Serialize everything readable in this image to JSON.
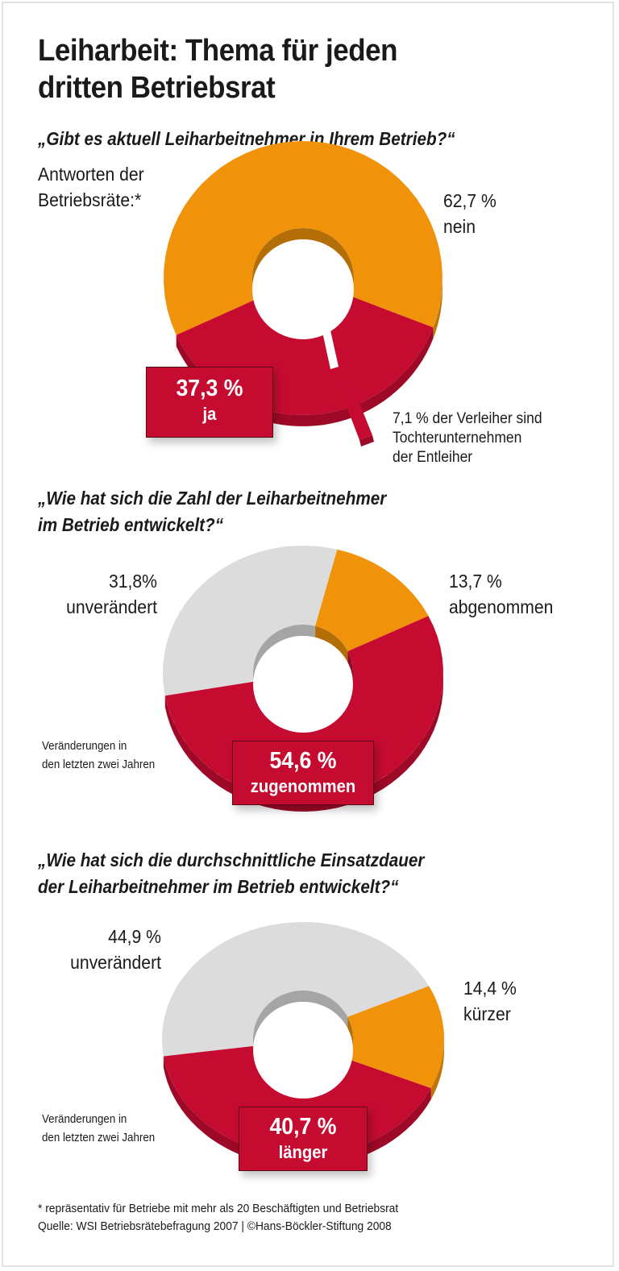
{
  "title": "Leiharbeit: Thema für jeden dritten Betriebsrat",
  "title_line1": "Leiharbeit: Thema für jeden",
  "title_line2": "dritten Betriebsrat",
  "colors": {
    "red": "#c60b31",
    "orange": "#f0920a",
    "gray": "#dcdcdd"
  },
  "chart_data": [
    {
      "type": "pie",
      "title": "„Gibt es aktuell Leiharbeitnehmer in Ihrem Betrieb?“",
      "subtitle": "Antworten der Betriebsräte:*",
      "categories": [
        "nein",
        "ja"
      ],
      "values": [
        62.7,
        37.3
      ],
      "colors": [
        "#f0920a",
        "#c60b31"
      ],
      "annotation": "7,1% der Verleiher sind Tochterunternehmen der Entleiher",
      "annotation_value": 7.1
    },
    {
      "type": "pie",
      "title": "„Wie hat sich die Zahl der Leiharbeitnehmer im Betrieb entwickelt?“",
      "note": "Veränderungen in den letzten zwei Jahren",
      "categories": [
        "unverändert",
        "abgenommen",
        "zugenommen"
      ],
      "values": [
        31.8,
        13.7,
        54.6
      ],
      "colors": [
        "#dcdcdd",
        "#f0920a",
        "#c60b31"
      ]
    },
    {
      "type": "pie",
      "title": "„Wie hat sich die durchschnittliche Einsatzdauer der Leiharbeitnehmer im Betrieb entwickelt?“",
      "note": "Veränderungen in den letzten zwei Jahren",
      "categories": [
        "unverändert",
        "kürzer",
        "länger"
      ],
      "values": [
        44.9,
        14.4,
        40.7
      ],
      "colors": [
        "#dcdcdd",
        "#f0920a",
        "#c60b31"
      ]
    }
  ],
  "c1": {
    "q": "„Gibt es aktuell Leiharbeitnehmer in Ihrem Betrieb?“",
    "sub1": "Antworten der",
    "sub2": "Betriebsräte:*",
    "nein_val": "62,7 %",
    "nein_lbl": "nein",
    "ja_val": "37,3 %",
    "ja_lbl": "ja",
    "ann1": "7,1 % der Verleiher sind",
    "ann2": "Tochterunternehmen",
    "ann3": "der Entleiher"
  },
  "c2": {
    "q1": "„Wie hat sich die Zahl der Leiharbeitnehmer",
    "q2": "im Betrieb entwickelt?“",
    "a_val": "31,8%",
    "a_lbl": "unverändert",
    "b_val": "13,7 %",
    "b_lbl": "abgenommen",
    "c_val": "54,6 %",
    "c_lbl": "zugenommen",
    "note1": "Veränderungen in",
    "note2": "den letzten zwei Jahren"
  },
  "c3": {
    "q1": "„Wie hat sich die durchschnittliche Einsatzdauer",
    "q2": "der Leiharbeitnehmer im Betrieb entwickelt?“",
    "a_val": "44,9 %",
    "a_lbl": "unverändert",
    "b_val": "14,4 %",
    "b_lbl": "kürzer",
    "c_val": "40,7 %",
    "c_lbl": "länger",
    "note1": "Veränderungen in",
    "note2": "den letzten zwei Jahren"
  },
  "footer": {
    "note": "* repräsentativ für Betriebe mit mehr als 20 Beschäftigten und Betriebsrat",
    "source": "Quelle: WSI Betriebsrätebefragung 2007 | ©Hans-Böckler-Stiftung 2008"
  }
}
